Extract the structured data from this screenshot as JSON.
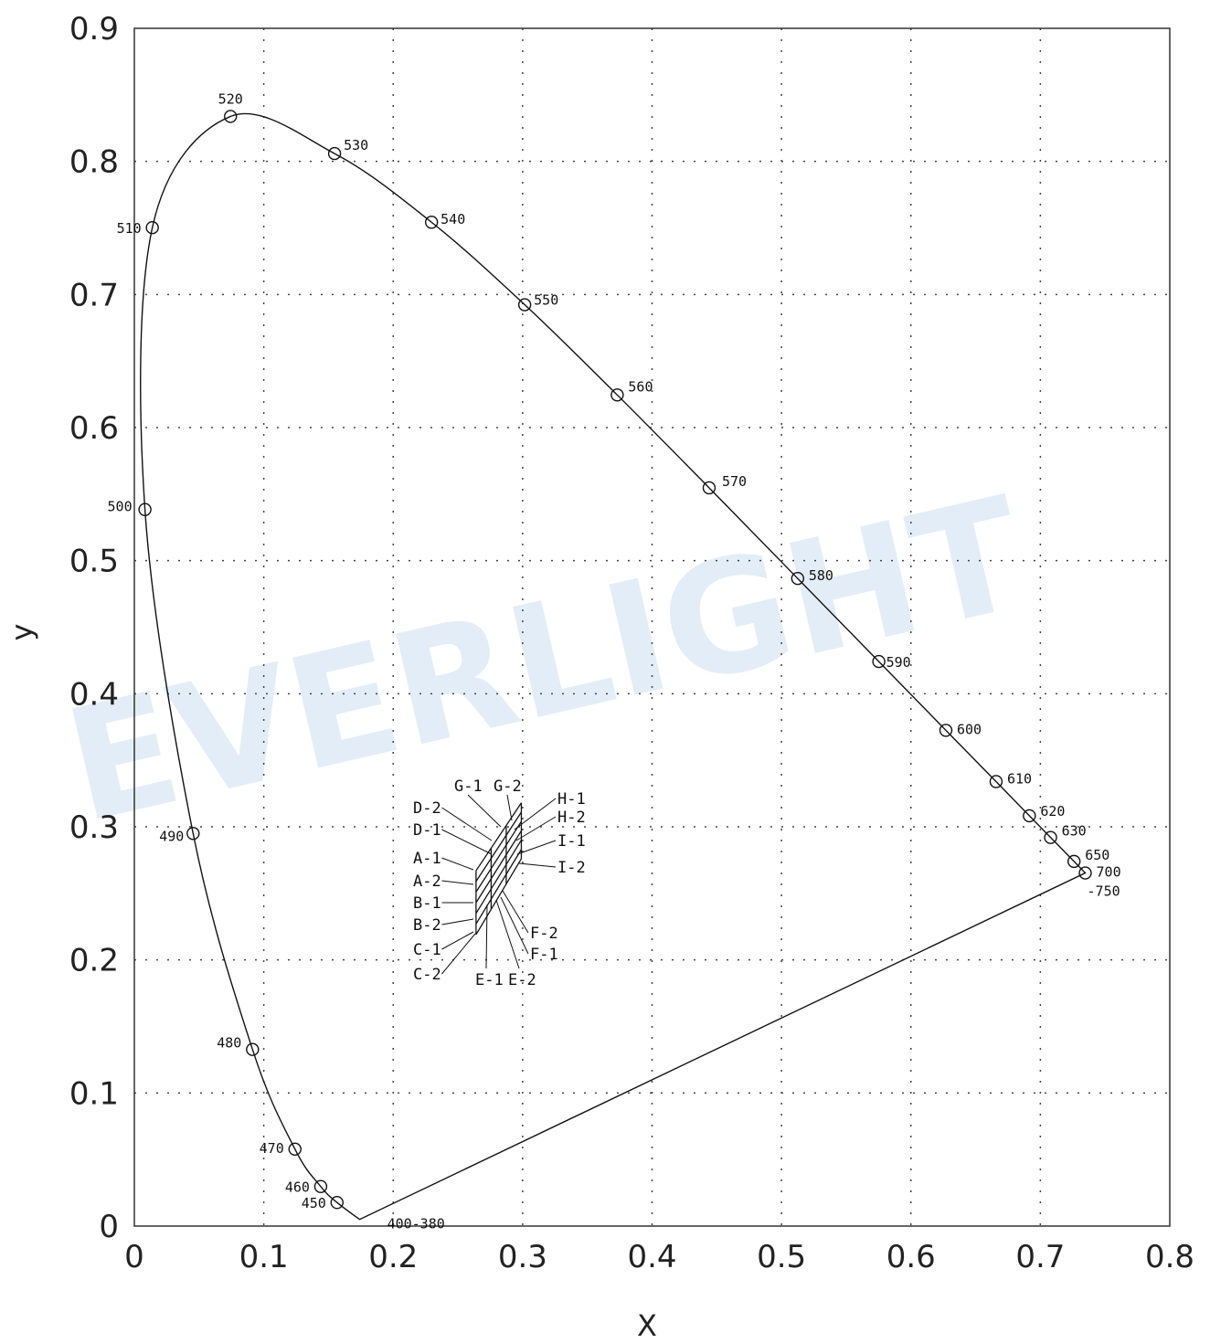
{
  "watermark": "EVERLIGHT",
  "chart_data": {
    "type": "scatter",
    "title": "",
    "xlabel": "X",
    "ylabel": "y",
    "xlim": [
      0,
      0.8
    ],
    "ylim": [
      0,
      0.9
    ],
    "grid": true,
    "x_ticks": [
      "0",
      "0.1",
      "0.2",
      "0.3",
      "0.4",
      "0.5",
      "0.6",
      "0.7",
      "0.8"
    ],
    "y_ticks": [
      "0",
      "0.1",
      "0.2",
      "0.3",
      "0.4",
      "0.5",
      "0.6",
      "0.7",
      "0.8",
      "0.9"
    ],
    "spectral_locus": [
      {
        "label": "400-380",
        "x": 0.1741,
        "y": 0.005
      },
      {
        "label": "450",
        "x": 0.1566,
        "y": 0.0177
      },
      {
        "label": "460",
        "x": 0.144,
        "y": 0.0297
      },
      {
        "label": "470",
        "x": 0.1241,
        "y": 0.0578
      },
      {
        "label": "480",
        "x": 0.0913,
        "y": 0.1327
      },
      {
        "label": "490",
        "x": 0.0454,
        "y": 0.295
      },
      {
        "label": "500",
        "x": 0.0082,
        "y": 0.5384
      },
      {
        "label": "510",
        "x": 0.0139,
        "y": 0.7502
      },
      {
        "label": "520",
        "x": 0.0743,
        "y": 0.8338
      },
      {
        "label": "530",
        "x": 0.1547,
        "y": 0.8059
      },
      {
        "label": "540",
        "x": 0.2296,
        "y": 0.7543
      },
      {
        "label": "550",
        "x": 0.3016,
        "y": 0.6923
      },
      {
        "label": "560",
        "x": 0.3731,
        "y": 0.6245
      },
      {
        "label": "570",
        "x": 0.4441,
        "y": 0.5547
      },
      {
        "label": "580",
        "x": 0.5125,
        "y": 0.4866
      },
      {
        "label": "590",
        "x": 0.5752,
        "y": 0.4242
      },
      {
        "label": "600",
        "x": 0.627,
        "y": 0.3725
      },
      {
        "label": "610",
        "x": 0.6658,
        "y": 0.334
      },
      {
        "label": "620",
        "x": 0.6915,
        "y": 0.3083
      },
      {
        "label": "630",
        "x": 0.7079,
        "y": 0.292
      },
      {
        "label": "650",
        "x": 0.726,
        "y": 0.274
      },
      {
        "label": "700",
        "x": 0.7347,
        "y": 0.2653
      }
    ],
    "locus_end_label": "-750",
    "bins": {
      "labels": [
        "A-1",
        "A-2",
        "B-1",
        "B-2",
        "C-1",
        "C-2",
        "D-1",
        "D-2",
        "E-1",
        "E-2",
        "F-1",
        "F-2",
        "G-1",
        "G-2",
        "H-1",
        "H-2",
        "I-1",
        "I-2"
      ],
      "corners": [
        {
          "x": 0.264,
          "y": 0.267
        },
        {
          "x": 0.264,
          "y": 0.219
        },
        {
          "x": 0.299,
          "y": 0.276
        },
        {
          "x": 0.299,
          "y": 0.318
        }
      ]
    }
  }
}
